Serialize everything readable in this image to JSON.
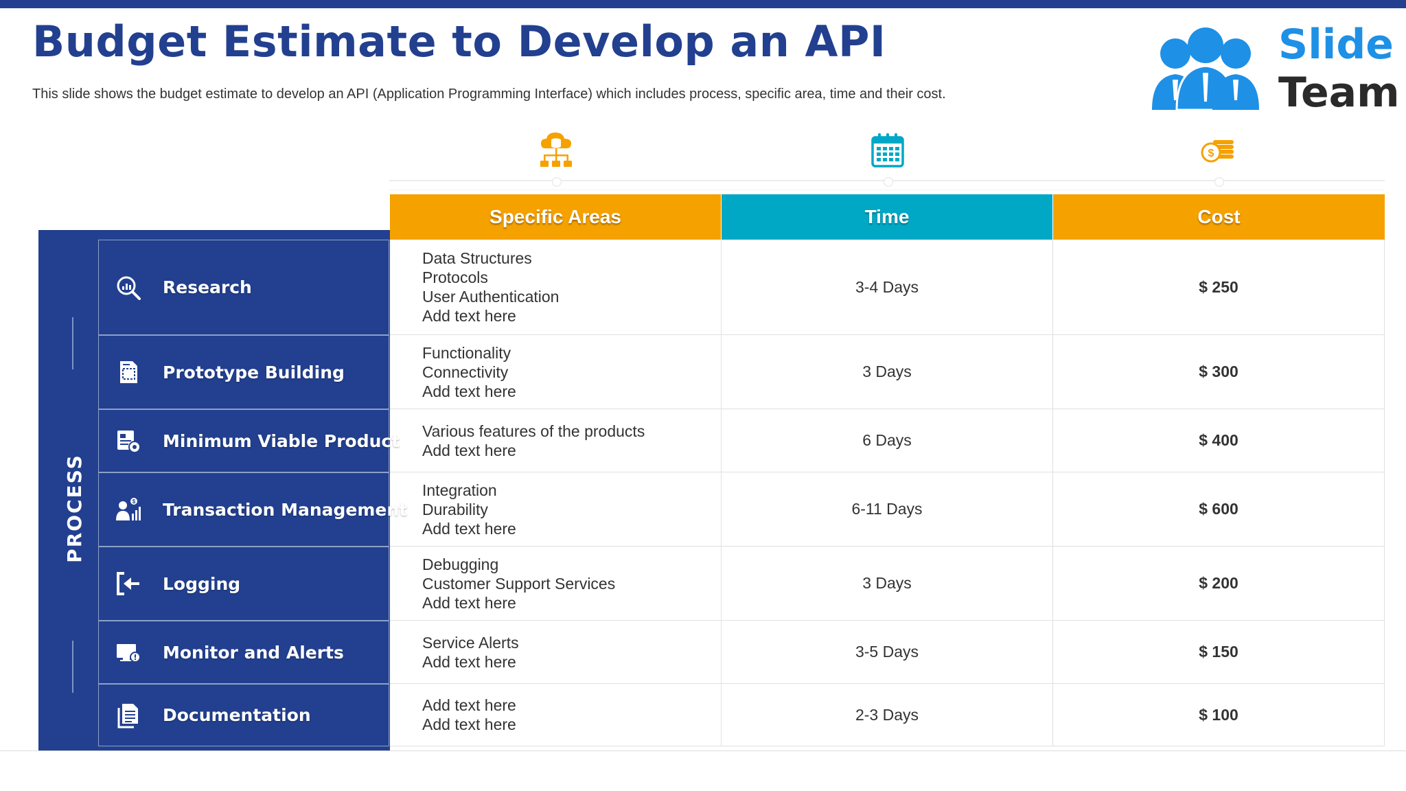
{
  "slide": {
    "title": "Budget Estimate to Develop an API",
    "subtitle": "This slide shows the budget estimate to develop an API (Application Programming Interface) which includes process, specific area, time and their cost."
  },
  "logo": {
    "word1": "Slide",
    "word2": "Team"
  },
  "columns": {
    "areas": {
      "label": "Specific Areas",
      "icon": "cloud-database-network-icon",
      "color": "#f5a100"
    },
    "time": {
      "label": "Time",
      "icon": "calendar-icon",
      "color": "#00a8c6"
    },
    "cost": {
      "label": "Cost",
      "icon": "coins-icon",
      "color": "#f5a100"
    }
  },
  "process_label": "PROCESS",
  "rows": [
    {
      "process": "Research",
      "icon": "magnifier-chart-icon",
      "areas": [
        "Data Structures",
        "Protocols",
        "User Authentication",
        "Add text here"
      ],
      "time": "3-4 Days",
      "cost": "$ 250"
    },
    {
      "process": "Prototype Building",
      "icon": "blueprint-document-icon",
      "areas": [
        "Functionality",
        "Connectivity",
        "Add text here"
      ],
      "time": "3 Days",
      "cost": "$ 300"
    },
    {
      "process": "Minimum Viable Product",
      "icon": "product-settings-icon",
      "areas": [
        "Various features of the products",
        "Add text here"
      ],
      "time": "6 Days",
      "cost": "$ 400"
    },
    {
      "process": "Transaction Management",
      "icon": "user-dollar-growth-icon",
      "areas": [
        "Integration",
        "Durability",
        "Add text here"
      ],
      "time": "6-11 Days",
      "cost": "$ 600"
    },
    {
      "process": "Logging",
      "icon": "sign-in-arrow-icon",
      "areas": [
        "Debugging",
        "Customer Support Services",
        "Add text here"
      ],
      "time": "3 Days",
      "cost": "$ 200"
    },
    {
      "process": "Monitor and Alerts",
      "icon": "monitor-alert-icon",
      "areas": [
        "Service Alerts",
        "Add text here"
      ],
      "time": "3-5 Days",
      "cost": "$ 150"
    },
    {
      "process": "Documentation",
      "icon": "documents-icon",
      "areas": [
        "Add text here",
        "Add text here"
      ],
      "time": "2-3 Days",
      "cost": "$ 100"
    }
  ]
}
